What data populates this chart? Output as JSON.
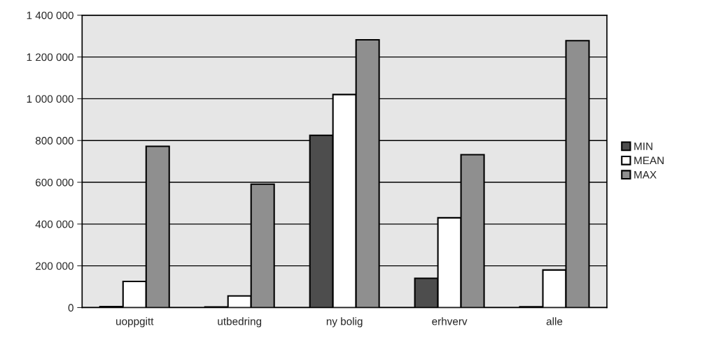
{
  "chart_data": {
    "type": "bar",
    "categories": [
      "uoppgitt",
      "utbedring",
      "ny bolig",
      "erhverv",
      "alle"
    ],
    "series": [
      {
        "name": "MIN",
        "color": "#4d4d4d",
        "values": [
          5000,
          3000,
          825000,
          140000,
          4000
        ]
      },
      {
        "name": "MEAN",
        "color": "#ffffff",
        "values": [
          125000,
          56000,
          1020000,
          430000,
          180000
        ]
      },
      {
        "name": "MAX",
        "color": "#8f8f8f",
        "values": [
          772000,
          591000,
          1282000,
          732000,
          1278000
        ]
      }
    ],
    "ylim": [
      0,
      1400000
    ],
    "yticks": [
      {
        "value": 0,
        "label": "0"
      },
      {
        "value": 200000,
        "label": "200 000"
      },
      {
        "value": 400000,
        "label": "400 000"
      },
      {
        "value": 600000,
        "label": "600 000"
      },
      {
        "value": 800000,
        "label": "800 000"
      },
      {
        "value": 1000000,
        "label": "1 000 000"
      },
      {
        "value": 1200000,
        "label": "1 200 000"
      },
      {
        "value": 1400000,
        "label": "1 400 000"
      }
    ],
    "grid": "y",
    "legend": "right"
  }
}
